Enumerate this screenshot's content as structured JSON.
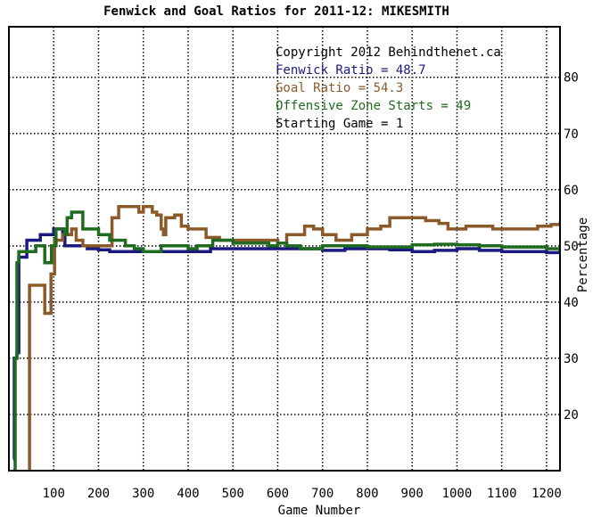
{
  "chart_data": {
    "type": "line",
    "title": "Fenwick and Goal Ratios for 2011-12: MIKESMITH",
    "xlabel": "Game Number",
    "ylabel": "Percentage",
    "xlim": [
      0,
      1230
    ],
    "ylim": [
      10,
      89
    ],
    "x_ticks": [
      100,
      200,
      300,
      400,
      500,
      600,
      700,
      800,
      900,
      1000,
      1100,
      1200
    ],
    "y_ticks": [
      20,
      30,
      40,
      50,
      60,
      70,
      80
    ],
    "grid": true,
    "legend_lines": [
      {
        "text": "Copyright 2012 Behindthenet.ca",
        "color": "#000000"
      },
      {
        "text": "Fenwick Ratio = 48.7",
        "color": "#1a1a80"
      },
      {
        "text": "Goal Ratio = 54.3",
        "color": "#8b5a2b"
      },
      {
        "text": "Offensive Zone Starts = 49",
        "color": "#1f6b1f"
      },
      {
        "text": "Starting Game = 1",
        "color": "#000000"
      }
    ],
    "series": [
      {
        "name": "Fenwick Ratio",
        "color": "#1a1a80",
        "points": [
          [
            10,
            12
          ],
          [
            12,
            30
          ],
          [
            18,
            31
          ],
          [
            22,
            48
          ],
          [
            35,
            48
          ],
          [
            40,
            51
          ],
          [
            60,
            51
          ],
          [
            70,
            52
          ],
          [
            90,
            52
          ],
          [
            100,
            53
          ],
          [
            110,
            53
          ],
          [
            120,
            52
          ],
          [
            125,
            50
          ],
          [
            140,
            50
          ],
          [
            160,
            50
          ],
          [
            175,
            49.5
          ],
          [
            200,
            49.3
          ],
          [
            225,
            49
          ],
          [
            260,
            49
          ],
          [
            300,
            49
          ],
          [
            330,
            49
          ],
          [
            350,
            49
          ],
          [
            400,
            49
          ],
          [
            450,
            49.5
          ],
          [
            500,
            49.5
          ],
          [
            550,
            49.5
          ],
          [
            600,
            49.5
          ],
          [
            650,
            49.5
          ],
          [
            700,
            49.2
          ],
          [
            750,
            49.5
          ],
          [
            800,
            49.5
          ],
          [
            850,
            49.3
          ],
          [
            900,
            49
          ],
          [
            950,
            49.2
          ],
          [
            1000,
            49.5
          ],
          [
            1050,
            49.2
          ],
          [
            1100,
            49
          ],
          [
            1150,
            49
          ],
          [
            1200,
            48.8
          ],
          [
            1230,
            48.7
          ]
        ]
      },
      {
        "name": "Goal Ratio",
        "color": "#8b5a2b",
        "points": [
          [
            45,
            10
          ],
          [
            46,
            43
          ],
          [
            78,
            43
          ],
          [
            80,
            38
          ],
          [
            92,
            38
          ],
          [
            94,
            45
          ],
          [
            100,
            45
          ],
          [
            102,
            51
          ],
          [
            120,
            52
          ],
          [
            135,
            52
          ],
          [
            140,
            53
          ],
          [
            150,
            51
          ],
          [
            165,
            50
          ],
          [
            200,
            50
          ],
          [
            225,
            50
          ],
          [
            230,
            55
          ],
          [
            245,
            57
          ],
          [
            290,
            56
          ],
          [
            300,
            57
          ],
          [
            320,
            56
          ],
          [
            330,
            55.5
          ],
          [
            340,
            53
          ],
          [
            345,
            52
          ],
          [
            350,
            55
          ],
          [
            370,
            55.5
          ],
          [
            385,
            53.5
          ],
          [
            400,
            53
          ],
          [
            430,
            53
          ],
          [
            440,
            51.5
          ],
          [
            470,
            51
          ],
          [
            500,
            51
          ],
          [
            550,
            51
          ],
          [
            580,
            51
          ],
          [
            600,
            50.5
          ],
          [
            620,
            52
          ],
          [
            650,
            52
          ],
          [
            660,
            53.5
          ],
          [
            680,
            53
          ],
          [
            700,
            52
          ],
          [
            720,
            52
          ],
          [
            730,
            51
          ],
          [
            750,
            51
          ],
          [
            765,
            52
          ],
          [
            790,
            52
          ],
          [
            800,
            53
          ],
          [
            830,
            53.5
          ],
          [
            850,
            55
          ],
          [
            880,
            55
          ],
          [
            900,
            55
          ],
          [
            930,
            54.5
          ],
          [
            960,
            54
          ],
          [
            980,
            53
          ],
          [
            1000,
            53
          ],
          [
            1020,
            53.5
          ],
          [
            1050,
            53.5
          ],
          [
            1080,
            53
          ],
          [
            1100,
            53
          ],
          [
            1140,
            53
          ],
          [
            1180,
            53.5
          ],
          [
            1210,
            53.8
          ],
          [
            1230,
            54.3
          ]
        ]
      },
      {
        "name": "Offensive Zone Starts",
        "color": "#1f6b1f",
        "points": [
          [
            10,
            10
          ],
          [
            14,
            30
          ],
          [
            18,
            47
          ],
          [
            22,
            49
          ],
          [
            55,
            49
          ],
          [
            60,
            50
          ],
          [
            75,
            50
          ],
          [
            80,
            47
          ],
          [
            90,
            47
          ],
          [
            95,
            50
          ],
          [
            105,
            53
          ],
          [
            120,
            53
          ],
          [
            125,
            52
          ],
          [
            130,
            55
          ],
          [
            140,
            56
          ],
          [
            160,
            56
          ],
          [
            165,
            53
          ],
          [
            180,
            53
          ],
          [
            200,
            52
          ],
          [
            225,
            51
          ],
          [
            250,
            51
          ],
          [
            260,
            50
          ],
          [
            280,
            49.5
          ],
          [
            300,
            49
          ],
          [
            320,
            49
          ],
          [
            340,
            50
          ],
          [
            360,
            50
          ],
          [
            400,
            49.5
          ],
          [
            420,
            50
          ],
          [
            440,
            50
          ],
          [
            455,
            51
          ],
          [
            470,
            51
          ],
          [
            500,
            50.5
          ],
          [
            550,
            50.5
          ],
          [
            580,
            50
          ],
          [
            600,
            50.5
          ],
          [
            620,
            50
          ],
          [
            650,
            49.5
          ],
          [
            680,
            49.5
          ],
          [
            700,
            50
          ],
          [
            720,
            50
          ],
          [
            750,
            50
          ],
          [
            800,
            49.8
          ],
          [
            850,
            49.8
          ],
          [
            900,
            50.2
          ],
          [
            950,
            50.3
          ],
          [
            1000,
            50.2
          ],
          [
            1050,
            50
          ],
          [
            1100,
            49.8
          ],
          [
            1150,
            49.8
          ],
          [
            1200,
            49.5
          ],
          [
            1230,
            49
          ]
        ]
      }
    ]
  }
}
